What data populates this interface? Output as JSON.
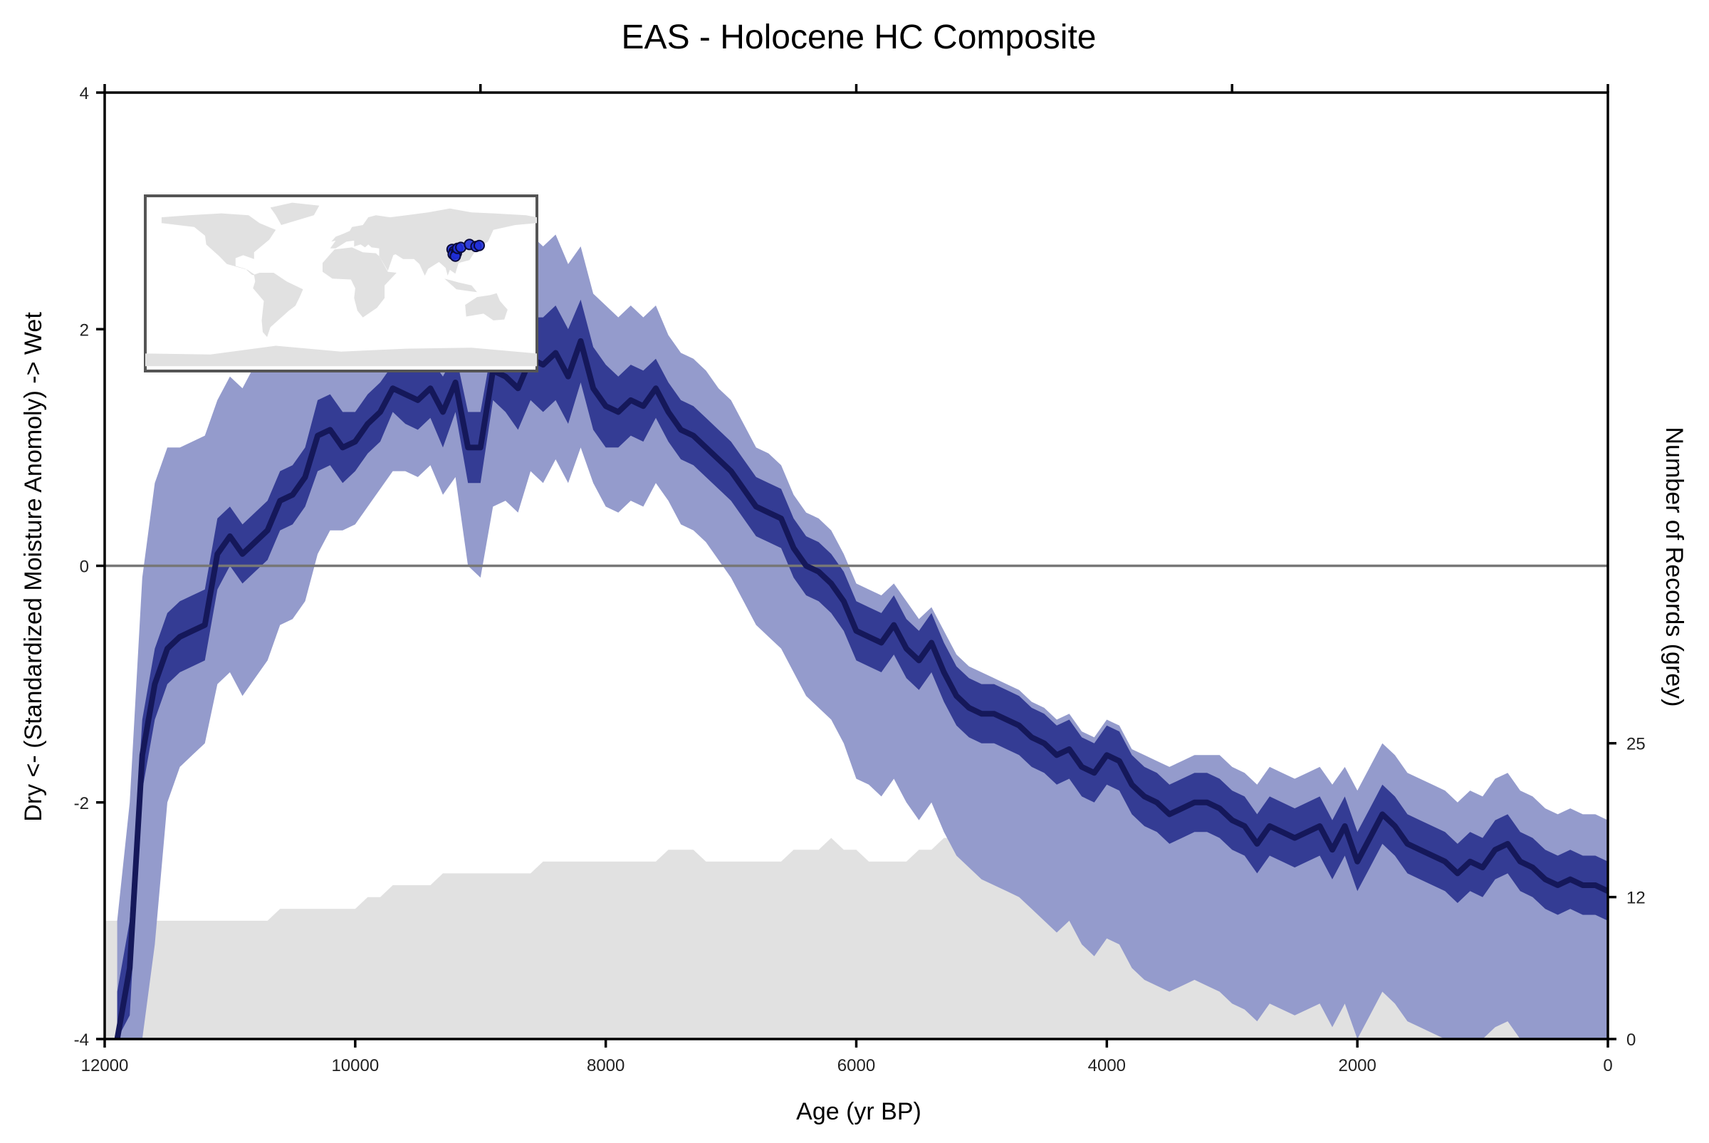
{
  "chart_data": {
    "type": "area",
    "title": "EAS - Holocene HC Composite",
    "xlabel": "Age (yr BP)",
    "ylabel": "Dry <- (Standardized Moisture Anomoly) -> Wet",
    "y2label": "Number of Records (grey)",
    "xlim": [
      12000,
      0
    ],
    "ylim": [
      -4,
      4
    ],
    "y2lim": [
      0,
      80
    ],
    "x_ticks": [
      12000,
      10000,
      8000,
      6000,
      4000,
      2000,
      0
    ],
    "x_tick_labels": [
      "12000",
      "10000",
      "8000",
      "6000",
      "4000",
      "2000",
      "0"
    ],
    "x_top_ticks": [
      12000,
      9000,
      6000,
      3000,
      0
    ],
    "y_ticks": [
      4,
      2,
      0,
      -2,
      -4
    ],
    "y_tick_labels": [
      "4",
      "2",
      "0",
      "-2",
      "-4"
    ],
    "y2_ticks": [
      25,
      12,
      0
    ],
    "y2_tick_labels": [
      "25",
      "12",
      "0"
    ],
    "zero_line": 0,
    "colors": {
      "outer_band": "#949bcc",
      "inner_band": "#343c94",
      "median_line": "#15185a",
      "records_fill": "#e1e1e1",
      "zero_line": "#777777",
      "inset_land": "#e1e1e1",
      "site_marker": "#1f2fd9"
    },
    "series": [
      {
        "name": "Composite median",
        "x": [
          11900,
          11800,
          11700,
          11600,
          11500,
          11400,
          11300,
          11200,
          11100,
          11000,
          10900,
          10800,
          10700,
          10600,
          10500,
          10400,
          10300,
          10200,
          10100,
          10000,
          9900,
          9800,
          9700,
          9600,
          9500,
          9400,
          9300,
          9200,
          9100,
          9000,
          8900,
          8800,
          8700,
          8600,
          8500,
          8400,
          8300,
          8200,
          8100,
          8000,
          7900,
          7800,
          7700,
          7600,
          7500,
          7400,
          7300,
          7200,
          7100,
          7000,
          6900,
          6800,
          6700,
          6600,
          6500,
          6400,
          6300,
          6200,
          6100,
          6000,
          5900,
          5800,
          5700,
          5600,
          5500,
          5400,
          5300,
          5200,
          5100,
          5000,
          4900,
          4800,
          4700,
          4600,
          4500,
          4400,
          4300,
          4200,
          4100,
          4000,
          3900,
          3800,
          3700,
          3600,
          3500,
          3400,
          3300,
          3200,
          3100,
          3000,
          2900,
          2800,
          2700,
          2600,
          2500,
          2400,
          2300,
          2200,
          2100,
          2000,
          1900,
          1800,
          1700,
          1600,
          1500,
          1400,
          1300,
          1200,
          1100,
          1000,
          900,
          800,
          700,
          600,
          500,
          400,
          300,
          200,
          100,
          0
        ],
        "y": [
          -4.0,
          -3.4,
          -1.6,
          -1.0,
          -0.7,
          -0.6,
          -0.55,
          -0.5,
          0.1,
          0.25,
          0.1,
          0.2,
          0.3,
          0.55,
          0.6,
          0.75,
          1.1,
          1.15,
          1.0,
          1.05,
          1.2,
          1.3,
          1.5,
          1.45,
          1.4,
          1.5,
          1.3,
          1.55,
          1.0,
          1.0,
          1.65,
          1.6,
          1.5,
          1.75,
          1.7,
          1.8,
          1.6,
          1.9,
          1.5,
          1.35,
          1.3,
          1.4,
          1.35,
          1.5,
          1.3,
          1.15,
          1.1,
          1.0,
          0.9,
          0.8,
          0.65,
          0.5,
          0.45,
          0.4,
          0.15,
          0.0,
          -0.05,
          -0.15,
          -0.3,
          -0.55,
          -0.6,
          -0.65,
          -0.5,
          -0.7,
          -0.8,
          -0.65,
          -0.9,
          -1.1,
          -1.2,
          -1.25,
          -1.25,
          -1.3,
          -1.35,
          -1.45,
          -1.5,
          -1.6,
          -1.55,
          -1.7,
          -1.75,
          -1.6,
          -1.65,
          -1.85,
          -1.95,
          -2.0,
          -2.1,
          -2.05,
          -2.0,
          -2.0,
          -2.05,
          -2.15,
          -2.2,
          -2.35,
          -2.2,
          -2.25,
          -2.3,
          -2.25,
          -2.2,
          -2.4,
          -2.2,
          -2.5,
          -2.3,
          -2.1,
          -2.2,
          -2.35,
          -2.4,
          -2.45,
          -2.5,
          -2.6,
          -2.5,
          -2.55,
          -2.4,
          -2.35,
          -2.5,
          -2.55,
          -2.65,
          -2.7,
          -2.65,
          -2.7,
          -2.7,
          -2.75
        ],
        "inner_upper": [
          -3.6,
          -3.0,
          -1.3,
          -0.7,
          -0.4,
          -0.3,
          -0.25,
          -0.2,
          0.4,
          0.5,
          0.35,
          0.45,
          0.55,
          0.8,
          0.85,
          1.0,
          1.4,
          1.45,
          1.3,
          1.3,
          1.45,
          1.55,
          1.7,
          1.7,
          1.65,
          1.75,
          1.6,
          1.8,
          1.3,
          1.3,
          1.9,
          1.9,
          1.85,
          2.1,
          2.1,
          2.2,
          2.0,
          2.25,
          1.85,
          1.7,
          1.6,
          1.7,
          1.65,
          1.75,
          1.55,
          1.4,
          1.35,
          1.25,
          1.15,
          1.05,
          0.9,
          0.75,
          0.7,
          0.65,
          0.4,
          0.25,
          0.2,
          0.1,
          -0.05,
          -0.3,
          -0.35,
          -0.4,
          -0.25,
          -0.45,
          -0.55,
          -0.4,
          -0.65,
          -0.85,
          -0.95,
          -1.0,
          -1.0,
          -1.05,
          -1.1,
          -1.2,
          -1.25,
          -1.35,
          -1.3,
          -1.45,
          -1.5,
          -1.35,
          -1.4,
          -1.6,
          -1.7,
          -1.75,
          -1.85,
          -1.8,
          -1.75,
          -1.75,
          -1.8,
          -1.9,
          -1.95,
          -2.1,
          -1.95,
          -2.0,
          -2.05,
          -2.0,
          -1.95,
          -2.15,
          -1.95,
          -2.25,
          -2.05,
          -1.85,
          -1.95,
          -2.1,
          -2.15,
          -2.2,
          -2.25,
          -2.35,
          -2.25,
          -2.3,
          -2.15,
          -2.1,
          -2.25,
          -2.3,
          -2.4,
          -2.45,
          -2.4,
          -2.45,
          -2.45,
          -2.5
        ],
        "inner_lower": [
          -4.0,
          -3.8,
          -1.9,
          -1.3,
          -1.0,
          -0.9,
          -0.85,
          -0.8,
          -0.2,
          0.0,
          -0.15,
          -0.05,
          0.05,
          0.3,
          0.35,
          0.5,
          0.8,
          0.85,
          0.7,
          0.8,
          0.95,
          1.05,
          1.3,
          1.2,
          1.15,
          1.25,
          1.0,
          1.3,
          0.7,
          0.7,
          1.4,
          1.3,
          1.15,
          1.4,
          1.3,
          1.4,
          1.2,
          1.55,
          1.15,
          1.0,
          1.0,
          1.1,
          1.05,
          1.25,
          1.05,
          0.9,
          0.85,
          0.75,
          0.65,
          0.55,
          0.4,
          0.25,
          0.2,
          0.15,
          -0.1,
          -0.25,
          -0.3,
          -0.4,
          -0.55,
          -0.8,
          -0.85,
          -0.9,
          -0.75,
          -0.95,
          -1.05,
          -0.9,
          -1.15,
          -1.35,
          -1.45,
          -1.5,
          -1.5,
          -1.55,
          -1.6,
          -1.7,
          -1.75,
          -1.85,
          -1.8,
          -1.95,
          -2.0,
          -1.85,
          -1.9,
          -2.1,
          -2.2,
          -2.25,
          -2.35,
          -2.3,
          -2.25,
          -2.25,
          -2.3,
          -2.4,
          -2.45,
          -2.6,
          -2.45,
          -2.5,
          -2.55,
          -2.5,
          -2.45,
          -2.65,
          -2.45,
          -2.75,
          -2.55,
          -2.35,
          -2.45,
          -2.6,
          -2.65,
          -2.7,
          -2.75,
          -2.85,
          -2.75,
          -2.8,
          -2.65,
          -2.6,
          -2.75,
          -2.8,
          -2.9,
          -2.95,
          -2.9,
          -2.95,
          -2.95,
          -3.0
        ],
        "outer_upper": [
          -3.0,
          -2.0,
          -0.1,
          0.7,
          1.0,
          1.0,
          1.05,
          1.1,
          1.4,
          1.6,
          1.5,
          1.7,
          1.85,
          2.1,
          2.2,
          2.4,
          2.6,
          2.6,
          2.5,
          2.55,
          2.7,
          2.8,
          2.9,
          2.95,
          2.9,
          3.0,
          2.9,
          3.05,
          2.75,
          2.6,
          2.95,
          2.85,
          2.7,
          2.8,
          2.7,
          2.8,
          2.55,
          2.7,
          2.3,
          2.2,
          2.1,
          2.2,
          2.1,
          2.2,
          1.95,
          1.8,
          1.75,
          1.65,
          1.5,
          1.4,
          1.2,
          1.0,
          0.95,
          0.85,
          0.6,
          0.45,
          0.4,
          0.3,
          0.1,
          -0.15,
          -0.2,
          -0.25,
          -0.15,
          -0.3,
          -0.45,
          -0.35,
          -0.55,
          -0.75,
          -0.85,
          -0.9,
          -0.95,
          -1.0,
          -1.05,
          -1.15,
          -1.2,
          -1.3,
          -1.25,
          -1.4,
          -1.45,
          -1.3,
          -1.35,
          -1.55,
          -1.6,
          -1.65,
          -1.7,
          -1.65,
          -1.6,
          -1.6,
          -1.6,
          -1.7,
          -1.75,
          -1.85,
          -1.7,
          -1.75,
          -1.8,
          -1.75,
          -1.7,
          -1.85,
          -1.7,
          -1.9,
          -1.7,
          -1.5,
          -1.6,
          -1.75,
          -1.8,
          -1.85,
          -1.9,
          -2.0,
          -1.9,
          -1.95,
          -1.8,
          -1.75,
          -1.9,
          -1.95,
          -2.05,
          -2.1,
          -2.05,
          -2.1,
          -2.1,
          -2.15
        ],
        "outer_lower": [
          -4.0,
          -4.0,
          -4.0,
          -3.2,
          -2.0,
          -1.7,
          -1.6,
          -1.5,
          -1.0,
          -0.9,
          -1.1,
          -0.95,
          -0.8,
          -0.5,
          -0.45,
          -0.3,
          0.1,
          0.3,
          0.3,
          0.35,
          0.5,
          0.65,
          0.8,
          0.8,
          0.75,
          0.85,
          0.6,
          0.75,
          0.0,
          -0.1,
          0.5,
          0.55,
          0.45,
          0.8,
          0.7,
          0.9,
          0.7,
          1.0,
          0.7,
          0.5,
          0.45,
          0.55,
          0.5,
          0.7,
          0.55,
          0.35,
          0.3,
          0.2,
          0.05,
          -0.1,
          -0.3,
          -0.5,
          -0.6,
          -0.7,
          -0.9,
          -1.1,
          -1.2,
          -1.3,
          -1.5,
          -1.8,
          -1.85,
          -1.95,
          -1.8,
          -2.0,
          -2.15,
          -2.0,
          -2.25,
          -2.45,
          -2.55,
          -2.65,
          -2.7,
          -2.75,
          -2.8,
          -2.9,
          -3.0,
          -3.1,
          -3.0,
          -3.2,
          -3.3,
          -3.15,
          -3.2,
          -3.4,
          -3.5,
          -3.55,
          -3.6,
          -3.55,
          -3.5,
          -3.55,
          -3.6,
          -3.7,
          -3.75,
          -3.85,
          -3.7,
          -3.75,
          -3.8,
          -3.75,
          -3.7,
          -3.9,
          -3.7,
          -4.0,
          -3.8,
          -3.6,
          -3.7,
          -3.85,
          -3.9,
          -3.95,
          -4.0,
          -4.0,
          -4.0,
          -4.0,
          -3.9,
          -3.85,
          -4.0,
          -4.0,
          -4.0,
          -4.0,
          -4.0,
          -4.0,
          -4.0,
          -4.0
        ]
      },
      {
        "name": "Number of records",
        "axis": "y2",
        "x": [
          12000,
          11900,
          11800,
          11700,
          11600,
          11500,
          11400,
          11300,
          11200,
          11100,
          11000,
          10900,
          10800,
          10700,
          10600,
          10500,
          10400,
          10300,
          10200,
          10100,
          10000,
          9900,
          9800,
          9700,
          9600,
          9500,
          9400,
          9300,
          9200,
          9100,
          9000,
          8900,
          8800,
          8700,
          8600,
          8500,
          8400,
          8300,
          8200,
          8100,
          8000,
          7900,
          7800,
          7700,
          7600,
          7500,
          7400,
          7300,
          7200,
          7100,
          7000,
          6900,
          6800,
          6700,
          6600,
          6500,
          6400,
          6300,
          6200,
          6100,
          6000,
          5900,
          5800,
          5700,
          5600,
          5500,
          5400,
          5300,
          5200,
          5100,
          5000,
          4900,
          4800,
          4700,
          4600,
          4500,
          4400,
          4300,
          4200,
          4100,
          4000,
          3900,
          3800,
          3700,
          3600,
          3500,
          3400,
          3300,
          3200,
          3100,
          3000,
          2900,
          2800,
          2700,
          2600,
          2500,
          2400,
          2300,
          2200,
          2100,
          2000,
          1900,
          1800,
          1700,
          1600,
          1500,
          1400,
          1300,
          1200,
          1100,
          1000,
          900,
          800,
          700,
          600,
          500,
          400,
          300,
          200,
          100,
          0
        ],
        "values": [
          10,
          10,
          10,
          10,
          10,
          10,
          10,
          10,
          10,
          10,
          10,
          10,
          10,
          10,
          11,
          11,
          11,
          11,
          11,
          11,
          11,
          12,
          12,
          13,
          13,
          13,
          13,
          14,
          14,
          14,
          14,
          14,
          14,
          14,
          14,
          15,
          15,
          15,
          15,
          15,
          15,
          15,
          15,
          15,
          15,
          16,
          16,
          16,
          15,
          15,
          15,
          15,
          15,
          15,
          15,
          16,
          16,
          16,
          17,
          16,
          16,
          15,
          15,
          15,
          15,
          16,
          16,
          17,
          17,
          16,
          16,
          15,
          15,
          16,
          16,
          16,
          16,
          16,
          16,
          15,
          15,
          16,
          16,
          16,
          16,
          16,
          16,
          16,
          16,
          16,
          16,
          15,
          15,
          15,
          15,
          15,
          15,
          15,
          15,
          15,
          15,
          15,
          15,
          15,
          15,
          15,
          15,
          15,
          15,
          15,
          15,
          15,
          15,
          15,
          15,
          15,
          15,
          15,
          15,
          15,
          15
        ]
      }
    ]
  },
  "inset": {
    "markers": [
      {
        "lon": 102,
        "lat": 35
      },
      {
        "lon": 104,
        "lat": 33
      },
      {
        "lon": 103,
        "lat": 30
      },
      {
        "lon": 106,
        "lat": 31
      },
      {
        "lon": 105,
        "lat": 28
      },
      {
        "lon": 107,
        "lat": 36
      },
      {
        "lon": 110,
        "lat": 37
      },
      {
        "lon": 118,
        "lat": 40
      },
      {
        "lon": 124,
        "lat": 38
      },
      {
        "lon": 127,
        "lat": 39
      }
    ]
  }
}
